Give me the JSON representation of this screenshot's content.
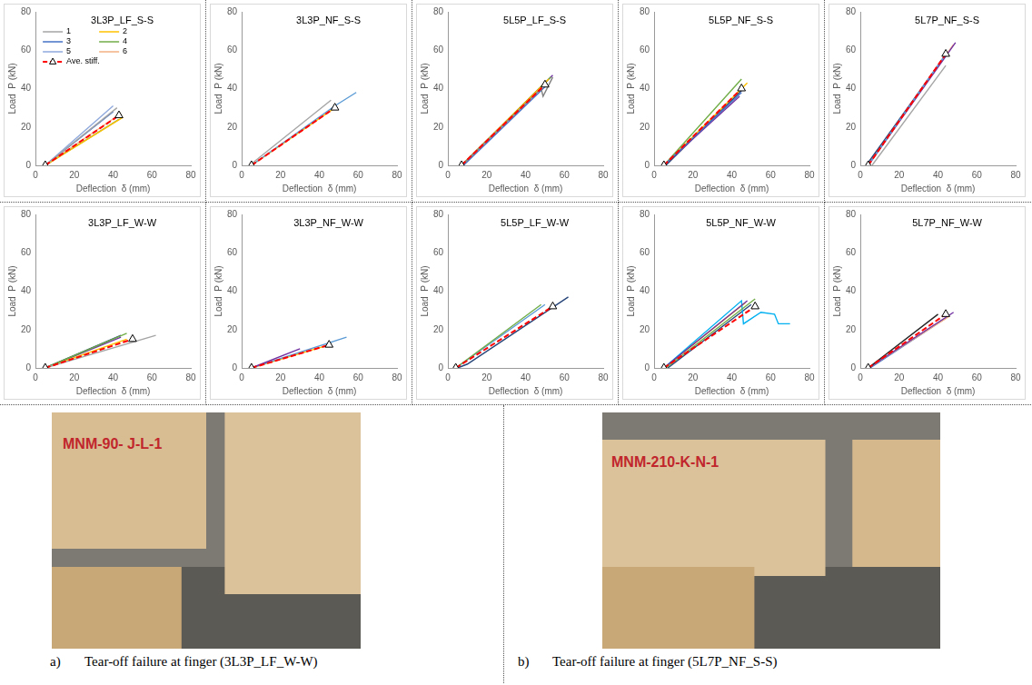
{
  "chart_data": [
    {
      "type": "line",
      "title": "3L3P_LF_S-S",
      "x_label": "Deflection  δ (mm)",
      "y_label": "Load  P (kN)",
      "xlim": [
        0,
        80
      ],
      "ylim": [
        0,
        80
      ],
      "xticks": [
        0,
        20,
        40,
        60,
        80
      ],
      "yticks": [
        0,
        20,
        40,
        60,
        80
      ],
      "grid": false,
      "legend": "upper left",
      "series": [
        {
          "name": "1",
          "color": "#a5a5a5",
          "x": [
            5,
            42
          ],
          "values": [
            0,
            30
          ]
        },
        {
          "name": "2",
          "color": "#ffc000",
          "x": [
            5,
            45
          ],
          "values": [
            0,
            25
          ]
        },
        {
          "name": "3",
          "color": "#4472c4",
          "x": [
            5,
            40
          ],
          "values": [
            0,
            28
          ]
        },
        {
          "name": "4",
          "color": "#70ad47",
          "x": [
            5,
            43
          ],
          "values": [
            0,
            24
          ]
        },
        {
          "name": "5",
          "color": "#8fa9dc",
          "x": [
            5,
            40
          ],
          "values": [
            0,
            31
          ]
        },
        {
          "name": "6",
          "color": "#f4b183",
          "x": [
            5,
            44
          ],
          "values": [
            0,
            27
          ]
        },
        {
          "name": "Ave. stiff.",
          "color": "#ff0000",
          "line_style": "dashed",
          "marker": "triangle",
          "x": [
            5,
            43
          ],
          "values": [
            0,
            26
          ]
        }
      ]
    },
    {
      "type": "line",
      "title": "3L3P_NF_S-S",
      "x_label": "Deflection  δ (mm)",
      "y_label": "Load  P (kN)",
      "xlim": [
        0,
        80
      ],
      "ylim": [
        0,
        80
      ],
      "xticks": [
        0,
        20,
        40,
        60,
        80
      ],
      "yticks": [
        0,
        20,
        40,
        60,
        80
      ],
      "grid": false,
      "series": [
        {
          "color": "#a5a5a5",
          "x": [
            4,
            46
          ],
          "values": [
            0,
            34
          ]
        },
        {
          "color": "#5b9bd5",
          "x": [
            5,
            48,
            59
          ],
          "values": [
            0,
            31,
            38
          ]
        },
        {
          "color": "#ffc000",
          "x": [
            5,
            48
          ],
          "values": [
            0,
            30
          ]
        },
        {
          "color": "#ff0000",
          "line_style": "dashed",
          "marker": "triangle",
          "x": [
            5,
            48
          ],
          "values": [
            0,
            30
          ]
        }
      ]
    },
    {
      "type": "line",
      "title": "5L5P_LF_S-S",
      "x_label": "Deflection  δ (mm)",
      "y_label": "Load  P (kN)",
      "xlim": [
        0,
        80
      ],
      "ylim": [
        0,
        80
      ],
      "xticks": [
        0,
        20,
        40,
        60,
        80
      ],
      "yticks": [
        0,
        20,
        40,
        60,
        80
      ],
      "grid": false,
      "series": [
        {
          "color": "#7f7f7f",
          "x": [
            7,
            48,
            49,
            54
          ],
          "values": [
            0,
            40,
            36,
            46
          ]
        },
        {
          "color": "#ffc000",
          "x": [
            7,
            52
          ],
          "values": [
            0,
            45
          ]
        },
        {
          "color": "#4472c4",
          "x": [
            8,
            50
          ],
          "values": [
            0,
            41
          ]
        },
        {
          "color": "#70ad47",
          "x": [
            7,
            53
          ],
          "values": [
            0,
            46
          ]
        },
        {
          "color": "#7030a0",
          "x": [
            7,
            54
          ],
          "values": [
            0,
            47
          ]
        },
        {
          "color": "#ff0000",
          "line_style": "dashed",
          "marker": "triangle",
          "x": [
            7,
            50
          ],
          "values": [
            0,
            42
          ]
        }
      ]
    },
    {
      "type": "line",
      "title": "5L5P_NF_S-S",
      "x_label": "Deflection  δ (mm)",
      "y_label": "Load  P (kN)",
      "xlim": [
        0,
        80
      ],
      "ylim": [
        0,
        80
      ],
      "xticks": [
        0,
        20,
        40,
        60,
        80
      ],
      "yticks": [
        0,
        20,
        40,
        60,
        80
      ],
      "grid": false,
      "series": [
        {
          "color": "#4472c4",
          "x": [
            5,
            45
          ],
          "values": [
            0,
            38
          ]
        },
        {
          "color": "#70ad47",
          "x": [
            5,
            45
          ],
          "values": [
            0,
            45
          ]
        },
        {
          "color": "#7030a0",
          "x": [
            5,
            44
          ],
          "values": [
            0,
            36
          ]
        },
        {
          "color": "#ffc000",
          "x": [
            5,
            48
          ],
          "values": [
            0,
            43
          ]
        },
        {
          "color": "#264478",
          "x": [
            6,
            46
          ],
          "values": [
            0,
            40
          ]
        },
        {
          "color": "#ff0000",
          "line_style": "dashed",
          "marker": "triangle",
          "x": [
            5,
            45
          ],
          "values": [
            0,
            40
          ]
        }
      ]
    },
    {
      "type": "line",
      "title": "5L7P_NF_S-S",
      "x_label": "Deflection  δ (mm)",
      "y_label": "Load  P (kN)",
      "xlim": [
        0,
        80
      ],
      "ylim": [
        0,
        80
      ],
      "xticks": [
        0,
        20,
        40,
        60,
        80
      ],
      "yticks": [
        0,
        20,
        40,
        60,
        80
      ],
      "grid": false,
      "series": [
        {
          "color": "#a5a5a5",
          "x": [
            6,
            44
          ],
          "values": [
            0,
            52
          ]
        },
        {
          "color": "#5b9bd5",
          "x": [
            4,
            44
          ],
          "values": [
            0,
            58
          ]
        },
        {
          "color": "#7030a0",
          "x": [
            4,
            49
          ],
          "values": [
            0,
            64
          ]
        },
        {
          "color": "#f4b183",
          "x": [
            4,
            48
          ],
          "values": [
            0,
            63
          ]
        },
        {
          "color": "#264478",
          "x": [
            3,
            40
          ],
          "values": [
            0,
            52
          ]
        },
        {
          "color": "#ff0000",
          "line_style": "dashed",
          "marker": "triangle",
          "x": [
            4,
            44
          ],
          "values": [
            0,
            58
          ]
        }
      ]
    },
    {
      "type": "line",
      "title": "3L3P_LF_W-W",
      "x_label": "Deflection  δ (mm)",
      "y_label": "Load  P (kN)",
      "xlim": [
        0,
        80
      ],
      "ylim": [
        0,
        80
      ],
      "xticks": [
        0,
        20,
        40,
        60,
        80
      ],
      "yticks": [
        0,
        20,
        40,
        60,
        80
      ],
      "grid": false,
      "series": [
        {
          "color": "#a5a5a5",
          "x": [
            5,
            62
          ],
          "values": [
            0,
            17
          ]
        },
        {
          "color": "#70ad47",
          "x": [
            5,
            47
          ],
          "values": [
            0,
            18
          ]
        },
        {
          "color": "#264478",
          "x": [
            5,
            44
          ],
          "values": [
            0,
            17
          ]
        },
        {
          "color": "#ffc000",
          "x": [
            5,
            47
          ],
          "values": [
            0,
            15
          ]
        },
        {
          "color": "#7030a0",
          "x": [
            5,
            44
          ],
          "values": [
            0,
            16
          ]
        },
        {
          "color": "#ff0000",
          "line_style": "dashed",
          "marker": "triangle",
          "x": [
            5,
            50
          ],
          "values": [
            0,
            15
          ]
        }
      ]
    },
    {
      "type": "line",
      "title": "3L3P_NF_W-W",
      "x_label": "Deflection  δ (mm)",
      "y_label": "Load  P (kN)",
      "xlim": [
        0,
        80
      ],
      "ylim": [
        0,
        80
      ],
      "xticks": [
        0,
        20,
        40,
        60,
        80
      ],
      "yticks": [
        0,
        20,
        40,
        60,
        80
      ],
      "grid": false,
      "series": [
        {
          "color": "#7030a0",
          "x": [
            5,
            30
          ],
          "values": [
            0,
            10
          ]
        },
        {
          "color": "#5b9bd5",
          "x": [
            5,
            54
          ],
          "values": [
            0,
            16
          ]
        },
        {
          "color": "#ffc000",
          "x": [
            5,
            45
          ],
          "values": [
            0,
            12
          ]
        },
        {
          "color": "#ff0000",
          "line_style": "dashed",
          "marker": "triangle",
          "x": [
            5,
            45
          ],
          "values": [
            0,
            12
          ]
        }
      ]
    },
    {
      "type": "line",
      "title": "5L5P_LF_W-W",
      "x_label": "Deflection  δ (mm)",
      "y_label": "Load  P (kN)",
      "xlim": [
        0,
        80
      ],
      "ylim": [
        0,
        80
      ],
      "xticks": [
        0,
        20,
        40,
        60,
        80
      ],
      "yticks": [
        0,
        20,
        40,
        60,
        80
      ],
      "grid": false,
      "series": [
        {
          "color": "#264478",
          "x": [
            5,
            10,
            62
          ],
          "values": [
            0,
            2,
            37
          ]
        },
        {
          "color": "#70ad47",
          "x": [
            4,
            48
          ],
          "values": [
            0,
            33
          ]
        },
        {
          "color": "#5b9bd5",
          "x": [
            4,
            50
          ],
          "values": [
            0,
            33
          ]
        },
        {
          "color": "#ff0000",
          "line_style": "dashed",
          "marker": "triangle",
          "x": [
            4,
            54
          ],
          "values": [
            0,
            32
          ]
        }
      ]
    },
    {
      "type": "line",
      "title": "5L5P_NF_W-W",
      "x_label": "Deflection  δ (mm)",
      "y_label": "Load  P (kN)",
      "xlim": [
        0,
        80
      ],
      "ylim": [
        0,
        80
      ],
      "xticks": [
        0,
        20,
        40,
        60,
        80
      ],
      "yticks": [
        0,
        20,
        40,
        60,
        80
      ],
      "grid": false,
      "series": [
        {
          "color": "#7030a0",
          "x": [
            5,
            48
          ],
          "values": [
            0,
            35
          ]
        },
        {
          "color": "#70ad47",
          "x": [
            6,
            52
          ],
          "values": [
            0,
            36
          ]
        },
        {
          "color": "#00b0f0",
          "x": [
            5,
            45,
            46,
            55,
            62,
            64,
            70
          ],
          "values": [
            0,
            35,
            23,
            29,
            28,
            23,
            23
          ]
        },
        {
          "color": "#264478",
          "x": [
            7,
            50
          ],
          "values": [
            0,
            33
          ]
        },
        {
          "color": "#ffc000",
          "x": [
            5,
            47
          ],
          "values": [
            0,
            34
          ]
        },
        {
          "color": "#ff0000",
          "line_style": "dashed",
          "marker": "triangle",
          "x": [
            5,
            52
          ],
          "values": [
            0,
            32
          ]
        }
      ]
    },
    {
      "type": "line",
      "title": "5L7P_NF_W-W",
      "x_label": "Deflection  δ (mm)",
      "y_label": "Load  P (kN)",
      "xlim": [
        0,
        80
      ],
      "ylim": [
        0,
        80
      ],
      "xticks": [
        0,
        20,
        40,
        60,
        80
      ],
      "yticks": [
        0,
        20,
        40,
        60,
        80
      ],
      "grid": false,
      "series": [
        {
          "color": "#262626",
          "x": [
            4,
            40
          ],
          "values": [
            0,
            28
          ]
        },
        {
          "color": "#7030a0",
          "x": [
            4,
            48
          ],
          "values": [
            0,
            29
          ]
        },
        {
          "color": "#f4b183",
          "x": [
            4,
            46
          ],
          "values": [
            0,
            27
          ]
        },
        {
          "color": "#4472c4",
          "x": [
            5,
            44
          ],
          "values": [
            0,
            26
          ]
        },
        {
          "color": "#ff0000",
          "line_style": "dashed",
          "marker": "triangle",
          "x": [
            4,
            44
          ],
          "values": [
            0,
            28
          ]
        }
      ]
    }
  ],
  "photos": [
    {
      "inscription": "MNM-90- J-L-1",
      "caption_label": "a)",
      "caption": "Tear-off failure at finger (3L3P_LF_W-W)"
    },
    {
      "inscription": "MNM-210-K-N-1",
      "caption_label": "b)",
      "caption": "Tear-off failure at finger (5L7P_NF_S-S)"
    }
  ]
}
